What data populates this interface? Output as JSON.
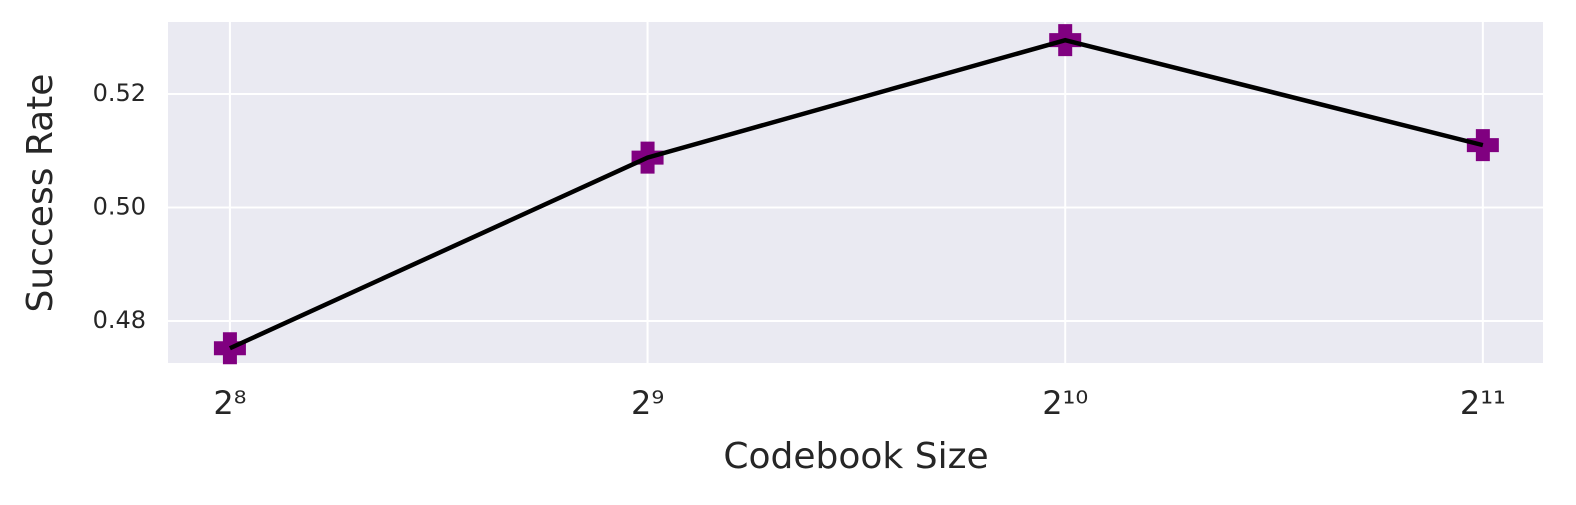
{
  "chart_data": {
    "type": "line",
    "x": [
      256,
      512,
      1024,
      2048
    ],
    "series": [
      {
        "name": "Success Rate",
        "color": "#000000",
        "marker_color": "#800080",
        "values": [
          0.4752,
          0.5088,
          0.5295,
          0.511
        ]
      }
    ],
    "xlabel": "Codebook Size",
    "ylabel": "Success Rate",
    "xscale": "log",
    "xscale_base": 2,
    "xlim": [
      231,
      2263
    ],
    "ylim": [
      0.4726,
      0.5327
    ],
    "xticks": [
      {
        "value": 256,
        "label": "2⁸"
      },
      {
        "value": 512,
        "label": "2⁹"
      },
      {
        "value": 1024,
        "label": "2¹⁰"
      },
      {
        "value": 2048,
        "label": "2¹¹"
      }
    ],
    "yticks": [
      {
        "value": 0.48,
        "label": "0.48"
      },
      {
        "value": 0.5,
        "label": "0.50"
      },
      {
        "value": 0.52,
        "label": "0.52"
      }
    ],
    "grid": true
  }
}
